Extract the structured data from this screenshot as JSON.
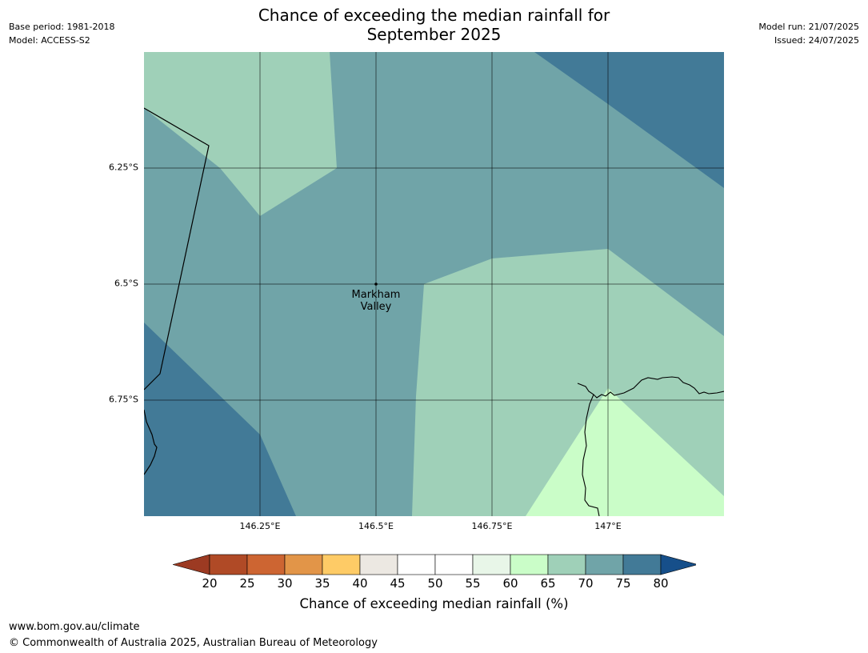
{
  "title": {
    "line1": "Chance of exceeding the median rainfall for",
    "line2": "September 2025"
  },
  "meta": {
    "base_period": "Base period: 1981-2018",
    "model": "Model: ACCESS-S2",
    "model_run": "Model run: 21/07/2025",
    "issued": "Issued: 24/07/2025"
  },
  "map": {
    "lat_labels": [
      "6.25°S",
      "6.5°S",
      "6.75°S"
    ],
    "lon_labels": [
      "146.25°E",
      "146.5°E",
      "146.75°E",
      "147°E"
    ],
    "place": {
      "line1": "Markham",
      "line2": "Valley",
      "lon": 146.5,
      "lat": -6.5
    },
    "extent": {
      "lon_min": 146.0,
      "lon_max": 147.25,
      "lat_max": -6.0,
      "lat_min": -7.0
    }
  },
  "colorbar": {
    "label": "Chance of exceeding median rainfall (%)",
    "ticks": [
      "20",
      "25",
      "30",
      "35",
      "40",
      "45",
      "50",
      "55",
      "60",
      "65",
      "70",
      "75",
      "80"
    ],
    "under_color": "#9c3a22",
    "over_color": "#164f8a",
    "colors": [
      "#b04a26",
      "#cd6532",
      "#e29548",
      "#fecb66",
      "#ece8e2",
      "#ffffff",
      "#ffffff",
      "#e8f6e8",
      "#cafdc8",
      "#9fd0b8",
      "#70a4a8",
      "#427a97"
    ]
  },
  "footer": {
    "url": "www.bom.gov.au/climate",
    "copyright": "© Commonwealth of Australia 2025, Australian Bureau of Meteorology"
  }
}
